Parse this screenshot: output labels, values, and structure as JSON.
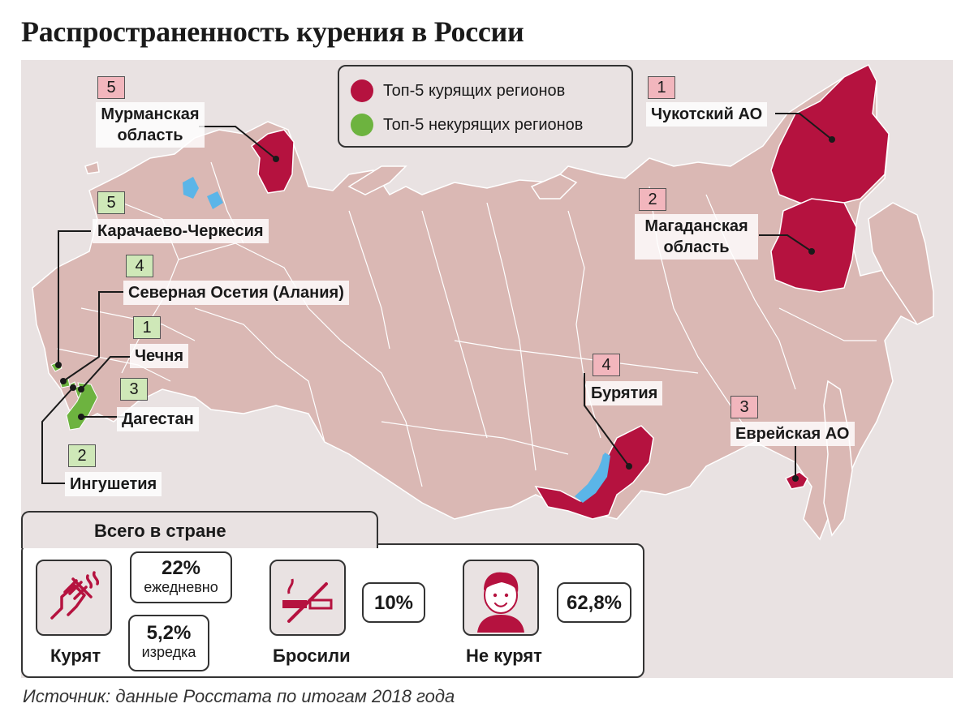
{
  "title": "Распространенность курения в России",
  "colors": {
    "smoking": "#b5123f",
    "nonsmoking": "#6db33f",
    "land": "#dab8b4",
    "water": "#ffffff",
    "lake": "#5bb5e8",
    "panel": "#e9e2e2"
  },
  "legend": {
    "top_smoking": "Топ-5 курящих регионов",
    "top_nonsmoking": "Топ-5 некурящих регионов"
  },
  "smoking_regions": [
    {
      "rank": "1",
      "name": "Чукотский АО"
    },
    {
      "rank": "2",
      "name_line1": "Магаданская",
      "name_line2": "область"
    },
    {
      "rank": "3",
      "name": "Еврейская АО"
    },
    {
      "rank": "4",
      "name": "Бурятия"
    },
    {
      "rank": "5",
      "name_line1": "Мурманская",
      "name_line2": "область"
    }
  ],
  "nonsmoking_regions": [
    {
      "rank": "1",
      "name": "Чечня"
    },
    {
      "rank": "2",
      "name": "Ингушетия"
    },
    {
      "rank": "3",
      "name": "Дагестан"
    },
    {
      "rank": "4",
      "name": "Северная Осетия (Алания)"
    },
    {
      "rank": "5",
      "name": "Карачаево-Черкесия"
    }
  ],
  "summary": {
    "title": "Всего в стране",
    "smoke_daily_value": "22%",
    "smoke_daily_label": "ежедневно",
    "smoke_rare_value": "5,2%",
    "smoke_rare_label": "изредка",
    "smoke_caption": "Курят",
    "quit_value": "10%",
    "quit_caption": "Бросили",
    "nonsmoke_value": "62,8%",
    "nonsmoke_caption": "Не курят",
    "icons": [
      "hand-cigarette-icon",
      "no-smoking-icon",
      "face-icon"
    ]
  },
  "source": "Источник: данные Росстата по итогам 2018 года"
}
